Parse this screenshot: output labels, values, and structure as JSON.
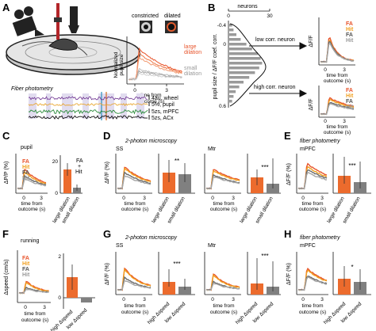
{
  "colors": {
    "fa": "#e8542b",
    "hit": "#f0a020",
    "fa_dark": "#6b6b6b",
    "hit_dark": "#a6a6a6",
    "bar_orange": "#ec6b2d",
    "bar_gray": "#808080",
    "wheel": "#6b2f8f",
    "pupil": "#e8a020",
    "mpfc": "#2a8a3a",
    "acx": "#111111"
  },
  "panels": {
    "A": {
      "letter": "A",
      "pupil_labels": [
        "constricted",
        "dilated"
      ],
      "y_label": [
        "Normalized",
        "pupil size"
      ],
      "legend": [
        "large",
        "dilation",
        "small",
        "dilation"
      ],
      "x_label": [
        "time from",
        "outcome (s)"
      ],
      "x_ticks": [
        "0",
        "3"
      ],
      "fiber_title": "Fiber photometry",
      "traces": [
        "4au, wheel",
        "5%, pupil",
        "5zs, mPFC",
        "5zs, ACx"
      ]
    },
    "B": {
      "letter": "B",
      "top_label": "neurons",
      "top_ticks": [
        "0",
        "30"
      ],
      "y_label": "pupil size / ΔF/F coef. corr.",
      "y_ticks": [
        "-0.4",
        "0",
        "0.6"
      ],
      "low_label": "low corr. neuron",
      "high_label": "high corr. neuron",
      "y_axis": "ΔF/F",
      "legend": [
        "FA",
        "Hit",
        "FA",
        "Hit"
      ],
      "x_label": [
        "time from",
        "outcome (s)"
      ],
      "x_ticks": [
        "0",
        "3"
      ]
    },
    "C": {
      "letter": "C",
      "title": "pupil",
      "y_label": "ΔP/P (%)",
      "legend": [
        "FA",
        "Hit",
        "FA",
        "Hit"
      ],
      "x_label": [
        "time from",
        "outcome (s)"
      ],
      "x_ticks": [
        "0",
        "3"
      ],
      "bar_ticks": [
        "20",
        "0"
      ],
      "bar_label": [
        "FA",
        "+",
        "Hit"
      ],
      "categories": [
        "large dilation",
        "small dilation"
      ]
    },
    "D": {
      "letter": "D",
      "title": "2-photon microscopy",
      "sub1": "SS",
      "sub2": "Mtr",
      "y_label": "ΔF/F (%)",
      "x_label": [
        "time from",
        "outcome (s)"
      ],
      "x_ticks": [
        "0",
        "3"
      ],
      "stars": [
        "**",
        "***"
      ],
      "categories": [
        "large dilation",
        "small dilation"
      ]
    },
    "E": {
      "letter": "E",
      "title": "fiber photometry",
      "sub": "mPFC",
      "y_label": "ΔF/F (%)",
      "x_label": [
        "time from",
        "outcome (s)"
      ],
      "x_ticks": [
        "0",
        "3"
      ],
      "stars": "***",
      "categories": [
        "large dilation",
        "small dilation"
      ]
    },
    "F": {
      "letter": "F",
      "title": "running",
      "y_label": "Δspeed (cm/s)",
      "legend": [
        "FA",
        "Hit",
        "FA",
        "Hit"
      ],
      "x_label": [
        "time from",
        "outcome (s)"
      ],
      "x_ticks": [
        "0",
        "3"
      ],
      "bar_ticks": [
        "2",
        "0"
      ],
      "categories": [
        "high Δspeed",
        "low Δspeed"
      ]
    },
    "G": {
      "letter": "G",
      "title": "2-photon microscopy",
      "sub1": "SS",
      "sub2": "Mtr",
      "y_label": "ΔF/F (%)",
      "x_label": [
        "time from",
        "outcome (s)"
      ],
      "x_ticks": [
        "0",
        "3"
      ],
      "stars": [
        "***",
        "***"
      ],
      "categories": [
        "high Δspeed",
        "low Δspeed"
      ]
    },
    "H": {
      "letter": "H",
      "title": "fiber photometry",
      "sub": "mPFC",
      "y_label": "ΔF/F (%)",
      "x_label": [
        "time from",
        "outcome (s)"
      ],
      "x_ticks": [
        "0",
        "3"
      ],
      "stars": "*",
      "categories": [
        "high Δspeed",
        "low Δspeed"
      ]
    }
  }
}
